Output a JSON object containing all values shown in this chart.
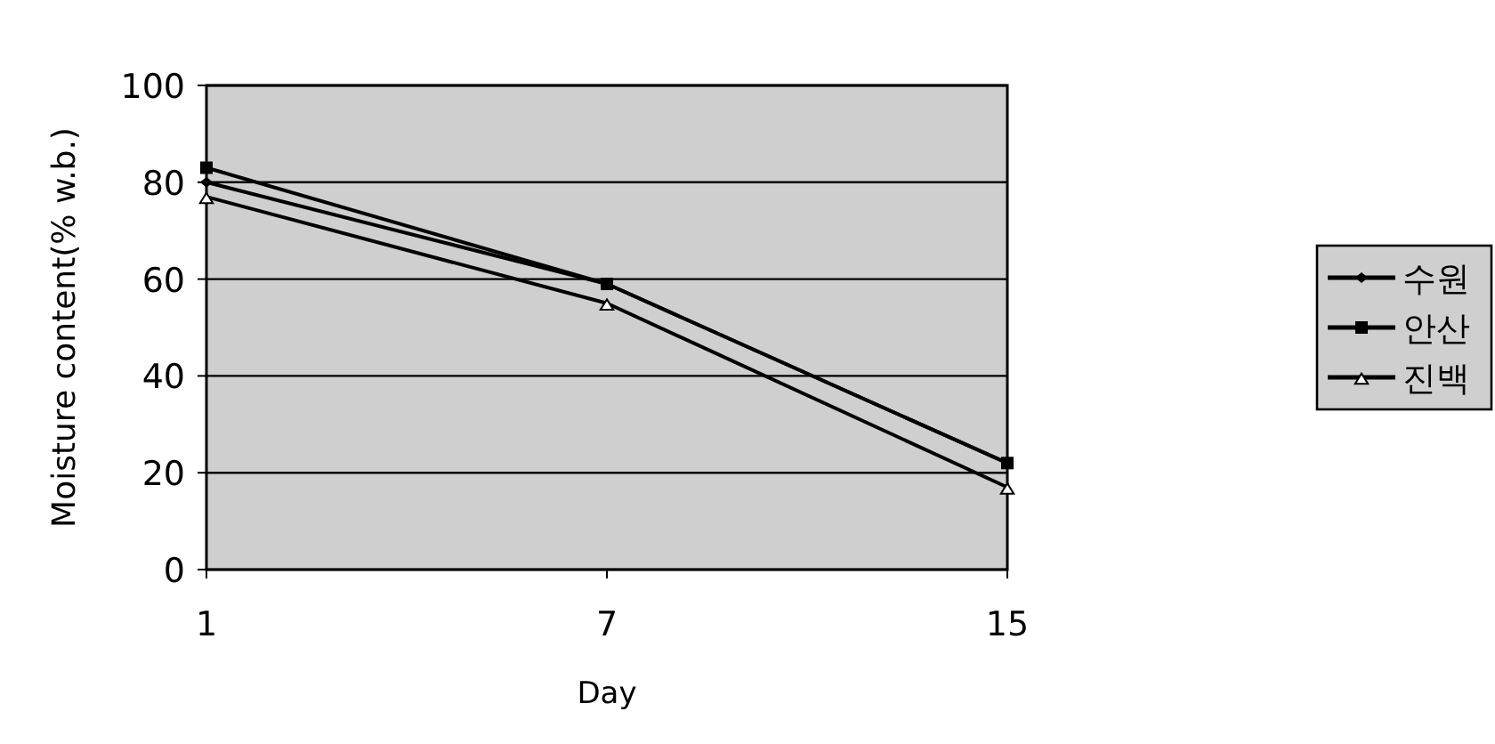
{
  "chart_data": {
    "type": "line",
    "xlabel": "Day",
    "ylabel": "Moisture content(% w.b.)",
    "categories": [
      "1",
      "7",
      "15"
    ],
    "ylim": [
      0,
      100
    ],
    "yticks": [
      0,
      20,
      40,
      60,
      80,
      100
    ],
    "grid": "y",
    "legend": "right",
    "series": [
      {
        "name": "수원",
        "color": "#000000",
        "marker": "diamond",
        "values": [
          80,
          59,
          22
        ]
      },
      {
        "name": "안산",
        "color": "#000000",
        "marker": "square",
        "values": [
          83,
          59,
          22
        ]
      },
      {
        "name": "진백",
        "color": "#000000",
        "marker": "triangle",
        "values": [
          77,
          55,
          17
        ]
      }
    ]
  }
}
